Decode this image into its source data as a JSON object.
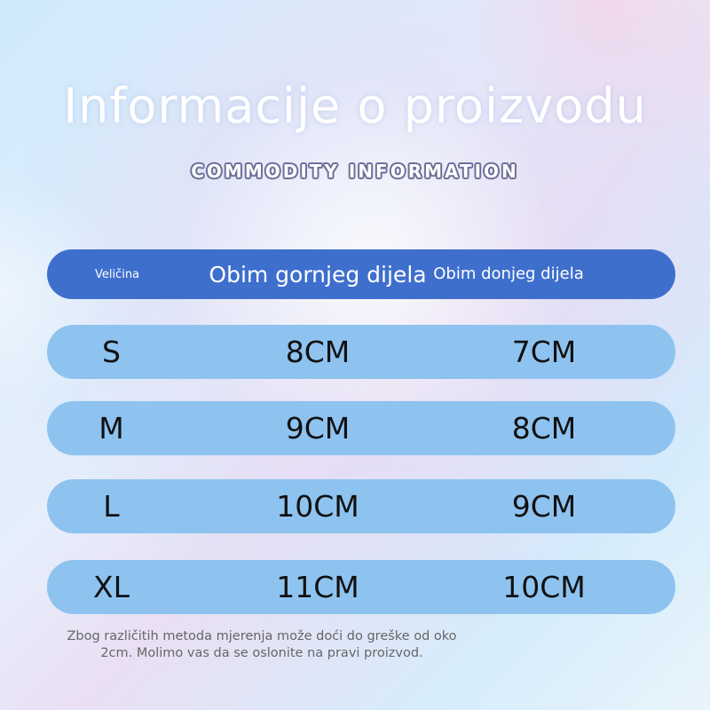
{
  "title": "Informacije o proizvodu",
  "subtitle": "COMMODITY INFORMATION",
  "table": {
    "headers": [
      "Veličina",
      "Obim gornjeg dijela",
      "Obim donjeg dijela"
    ],
    "rows": [
      {
        "size": "S",
        "upper": "8CM",
        "lower": "7CM"
      },
      {
        "size": "M",
        "upper": "9CM",
        "lower": "8CM"
      },
      {
        "size": "L",
        "upper": "10CM",
        "lower": "9CM"
      },
      {
        "size": "XL",
        "upper": "11CM",
        "lower": "10CM"
      }
    ]
  },
  "note": "Zbog različitih metoda mjerenja može doći do greške od oko 2cm. Molimo vas da se oslonite na pravi proizvod.",
  "colors": {
    "header": "#3f6fcd",
    "row": "#8ec3f0"
  }
}
